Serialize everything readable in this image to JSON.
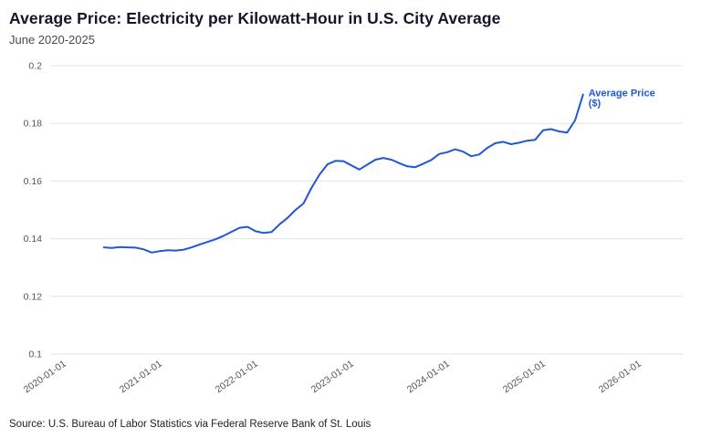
{
  "header": {
    "title": "Average Price: Electricity per Kilowatt-Hour in U.S. City Average",
    "subtitle": "June 2020-2025"
  },
  "footer": {
    "source": "Source: U.S. Bureau of Labor Statistics via Federal Reserve Bank of St. Louis"
  },
  "chart_data": {
    "type": "line",
    "title": "Average Price: Electricity per Kilowatt-Hour in U.S. City Average",
    "subtitle": "June 2020-2025",
    "xlabel": "",
    "ylabel": "",
    "ylim": [
      0.1,
      0.2
    ],
    "xlim": [
      "2020-01-01",
      "2026-01-01"
    ],
    "y_ticks": [
      0.1,
      0.12,
      0.14,
      0.16,
      0.18,
      0.2
    ],
    "x_ticks": [
      "2020-01-01",
      "2021-01-01",
      "2022-01-01",
      "2023-01-01",
      "2024-01-01",
      "2025-01-01",
      "2026-01-01"
    ],
    "grid": "horizontal",
    "grid_color": "#e3e3e3",
    "line_color": "#2057d4",
    "legend_position": "end-of-line",
    "annotation": {
      "lines": [
        "Average Price",
        "($)"
      ]
    },
    "series": [
      {
        "name": "Average Price ($)",
        "points": [
          [
            "2020-06-01",
            0.137
          ],
          [
            "2020-07-01",
            0.1368
          ],
          [
            "2020-08-01",
            0.1371
          ],
          [
            "2020-09-01",
            0.137
          ],
          [
            "2020-10-01",
            0.1369
          ],
          [
            "2020-11-01",
            0.1363
          ],
          [
            "2020-12-01",
            0.1352
          ],
          [
            "2021-01-01",
            0.1357
          ],
          [
            "2021-02-01",
            0.136
          ],
          [
            "2021-03-01",
            0.1359
          ],
          [
            "2021-04-01",
            0.1362
          ],
          [
            "2021-05-01",
            0.137
          ],
          [
            "2021-06-01",
            0.138
          ],
          [
            "2021-07-01",
            0.1389
          ],
          [
            "2021-08-01",
            0.1398
          ],
          [
            "2021-09-01",
            0.141
          ],
          [
            "2021-10-01",
            0.1424
          ],
          [
            "2021-11-01",
            0.1438
          ],
          [
            "2021-12-01",
            0.1441
          ],
          [
            "2022-01-01",
            0.1426
          ],
          [
            "2022-02-01",
            0.142
          ],
          [
            "2022-03-01",
            0.1423
          ],
          [
            "2022-04-01",
            0.145
          ],
          [
            "2022-05-01",
            0.1472
          ],
          [
            "2022-06-01",
            0.15
          ],
          [
            "2022-07-01",
            0.1522
          ],
          [
            "2022-08-01",
            0.1576
          ],
          [
            "2022-09-01",
            0.1622
          ],
          [
            "2022-10-01",
            0.1658
          ],
          [
            "2022-11-01",
            0.167
          ],
          [
            "2022-12-01",
            0.1669
          ],
          [
            "2023-01-01",
            0.1654
          ],
          [
            "2023-02-01",
            0.164
          ],
          [
            "2023-03-01",
            0.1657
          ],
          [
            "2023-04-01",
            0.1674
          ],
          [
            "2023-05-01",
            0.168
          ],
          [
            "2023-06-01",
            0.1674
          ],
          [
            "2023-07-01",
            0.1662
          ],
          [
            "2023-08-01",
            0.1651
          ],
          [
            "2023-09-01",
            0.1648
          ],
          [
            "2023-10-01",
            0.166
          ],
          [
            "2023-11-01",
            0.1673
          ],
          [
            "2023-12-01",
            0.1694
          ],
          [
            "2024-01-01",
            0.17
          ],
          [
            "2024-02-01",
            0.171
          ],
          [
            "2024-03-01",
            0.1702
          ],
          [
            "2024-04-01",
            0.1686
          ],
          [
            "2024-05-01",
            0.1692
          ],
          [
            "2024-06-01",
            0.1715
          ],
          [
            "2024-07-01",
            0.1731
          ],
          [
            "2024-08-01",
            0.1736
          ],
          [
            "2024-09-01",
            0.1728
          ],
          [
            "2024-10-01",
            0.1733
          ],
          [
            "2024-11-01",
            0.174
          ],
          [
            "2024-12-01",
            0.1743
          ],
          [
            "2025-01-01",
            0.1776
          ],
          [
            "2025-02-01",
            0.178
          ],
          [
            "2025-03-01",
            0.1772
          ],
          [
            "2025-04-01",
            0.1768
          ],
          [
            "2025-05-01",
            0.181
          ],
          [
            "2025-06-01",
            0.19
          ]
        ]
      }
    ]
  }
}
